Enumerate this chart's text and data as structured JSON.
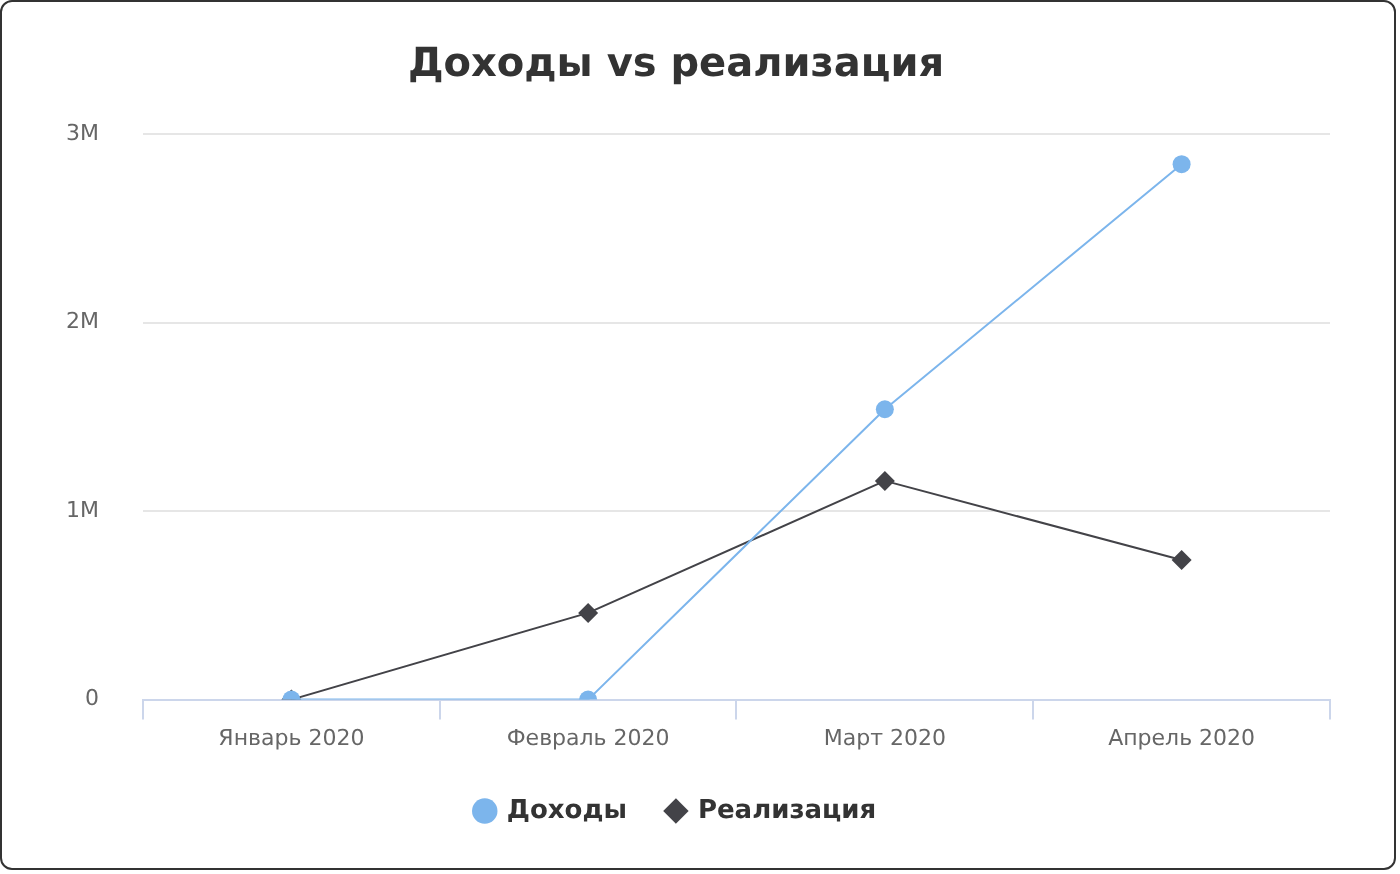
{
  "chart_data": {
    "type": "line",
    "title": "Доходы vs реализация",
    "categories": [
      "Январь 2020",
      "Февраль 2020",
      "Март 2020",
      "Апрель 2020"
    ],
    "series": [
      {
        "name": "Доходы",
        "color": "#7cb5ec",
        "marker": "circle",
        "values": [
          0,
          0,
          1540000,
          2840000
        ]
      },
      {
        "name": "Реализация",
        "color": "#434348",
        "marker": "diamond",
        "values": [
          0,
          460000,
          1160000,
          740000
        ]
      }
    ],
    "ylim": [
      0,
      3000000
    ],
    "yticks": [
      {
        "value": 0,
        "label": "0"
      },
      {
        "value": 1000000,
        "label": "1M"
      },
      {
        "value": 2000000,
        "label": "2M"
      },
      {
        "value": 3000000,
        "label": "3M"
      }
    ],
    "grid": "y",
    "legend": "bottom"
  }
}
